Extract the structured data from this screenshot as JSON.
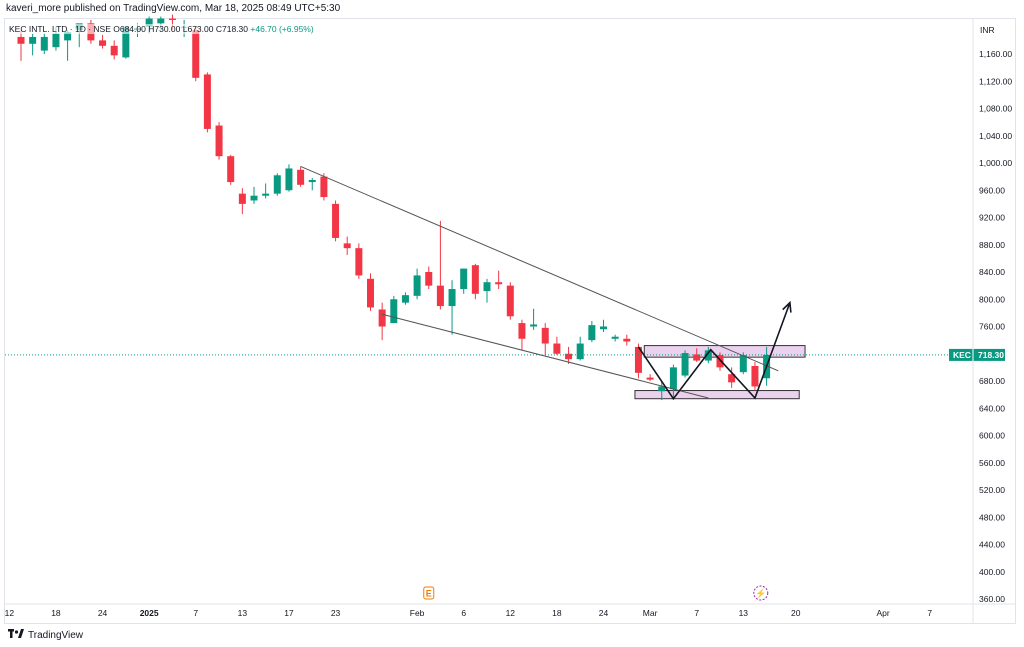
{
  "header": {
    "publisher": "kaveri_more published on TradingView.com, Mar 18, 2025 08:49 UTC+5:30"
  },
  "legend": {
    "symbol": "KEC INTL. LTD · 1D · NSE",
    "open": "O684.00",
    "high": "H730.00",
    "low": "L673.00",
    "close": "C718.30",
    "change": "+46.70 (+6.95%)"
  },
  "footer": {
    "brand": "TradingView",
    "logo": "tradingview-logo-icon"
  },
  "colors": {
    "up": "#089981",
    "down": "#f23645",
    "line": "#555555",
    "zone_fill": "#e1bee7",
    "zone_stroke": "#333333",
    "price_tag": "#089981"
  },
  "chart_data": {
    "type": "candlestick",
    "currency": "INR",
    "ylim": [
      345,
      1210
    ],
    "y_ticks": [
      1160,
      1120,
      1080,
      1040,
      1000,
      960,
      920,
      880,
      840,
      800,
      760,
      720,
      680,
      640,
      600,
      560,
      520,
      480,
      440,
      400,
      360
    ],
    "y_tick_labels": [
      "1,160.00",
      "1,120.00",
      "1,080.00",
      "1,040.00",
      "1,000.00",
      "960.00",
      "920.00",
      "880.00",
      "840.00",
      "800.00",
      "760.00",
      "720.00",
      "680.00",
      "640.00",
      "600.00",
      "560.00",
      "520.00",
      "480.00",
      "440.00",
      "400.00",
      "360.00"
    ],
    "x_ticks": [
      {
        "label": "12",
        "i": -1,
        "bold": false
      },
      {
        "label": "18",
        "i": 3,
        "bold": false
      },
      {
        "label": "24",
        "i": 7,
        "bold": false
      },
      {
        "label": "2025",
        "i": 11,
        "bold": true
      },
      {
        "label": "7",
        "i": 15,
        "bold": false
      },
      {
        "label": "13",
        "i": 19,
        "bold": false
      },
      {
        "label": "17",
        "i": 23,
        "bold": false
      },
      {
        "label": "23",
        "i": 27,
        "bold": false
      },
      {
        "label": "Feb",
        "i": 34,
        "bold": false
      },
      {
        "label": "6",
        "i": 38,
        "bold": false
      },
      {
        "label": "12",
        "i": 42,
        "bold": false
      },
      {
        "label": "18",
        "i": 46,
        "bold": false
      },
      {
        "label": "24",
        "i": 50,
        "bold": false
      },
      {
        "label": "Mar",
        "i": 54,
        "bold": false
      },
      {
        "label": "7",
        "i": 58,
        "bold": false
      },
      {
        "label": "13",
        "i": 62,
        "bold": false
      },
      {
        "label": "20",
        "i": 66.5,
        "bold": false
      },
      {
        "label": "Apr",
        "i": 74,
        "bold": false
      },
      {
        "label": "7",
        "i": 78,
        "bold": false
      }
    ],
    "candles": [
      {
        "o": 1185,
        "h": 1195,
        "l": 1150,
        "c": 1175
      },
      {
        "o": 1175,
        "h": 1190,
        "l": 1158,
        "c": 1185
      },
      {
        "o": 1165,
        "h": 1190,
        "l": 1160,
        "c": 1185
      },
      {
        "o": 1170,
        "h": 1200,
        "l": 1165,
        "c": 1190
      },
      {
        "o": 1180,
        "h": 1195,
        "l": 1150,
        "c": 1192
      },
      {
        "o": 1195,
        "h": 1200,
        "l": 1170,
        "c": 1205
      },
      {
        "o": 1205,
        "h": 1210,
        "l": 1175,
        "c": 1180
      },
      {
        "o": 1180,
        "h": 1188,
        "l": 1168,
        "c": 1172
      },
      {
        "o": 1172,
        "h": 1180,
        "l": 1152,
        "c": 1158
      },
      {
        "o": 1155,
        "h": 1200,
        "l": 1153,
        "c": 1200
      },
      {
        "o": 1195,
        "h": 1205,
        "l": 1185,
        "c": 1198
      },
      {
        "o": 1200,
        "h": 1215,
        "l": 1190,
        "c": 1212
      },
      {
        "o": 1205,
        "h": 1215,
        "l": 1196,
        "c": 1212
      },
      {
        "o": 1212,
        "h": 1218,
        "l": 1195,
        "c": 1210
      },
      {
        "o": 1200,
        "h": 1210,
        "l": 1185,
        "c": 1200
      },
      {
        "o": 1195,
        "h": 1200,
        "l": 1120,
        "c": 1125
      },
      {
        "o": 1130,
        "h": 1133,
        "l": 1045,
        "c": 1050
      },
      {
        "o": 1055,
        "h": 1060,
        "l": 1005,
        "c": 1010
      },
      {
        "o": 1010,
        "h": 1012,
        "l": 968,
        "c": 972
      },
      {
        "o": 955,
        "h": 963,
        "l": 925,
        "c": 940
      },
      {
        "o": 945,
        "h": 965,
        "l": 940,
        "c": 952
      },
      {
        "o": 952,
        "h": 970,
        "l": 948,
        "c": 955
      },
      {
        "o": 955,
        "h": 985,
        "l": 952,
        "c": 982
      },
      {
        "o": 960,
        "h": 998,
        "l": 958,
        "c": 992
      },
      {
        "o": 990,
        "h": 995,
        "l": 965,
        "c": 968
      },
      {
        "o": 972,
        "h": 978,
        "l": 960,
        "c": 975
      },
      {
        "o": 980,
        "h": 985,
        "l": 945,
        "c": 950
      },
      {
        "o": 940,
        "h": 945,
        "l": 885,
        "c": 890
      },
      {
        "o": 882,
        "h": 892,
        "l": 865,
        "c": 875
      },
      {
        "o": 875,
        "h": 882,
        "l": 830,
        "c": 835
      },
      {
        "o": 830,
        "h": 838,
        "l": 783,
        "c": 788
      },
      {
        "o": 785,
        "h": 795,
        "l": 740,
        "c": 760
      },
      {
        "o": 765,
        "h": 805,
        "l": 765,
        "c": 800
      },
      {
        "o": 795,
        "h": 810,
        "l": 792,
        "c": 806
      },
      {
        "o": 805,
        "h": 845,
        "l": 800,
        "c": 835
      },
      {
        "o": 840,
        "h": 848,
        "l": 815,
        "c": 820
      },
      {
        "o": 820,
        "h": 915,
        "l": 785,
        "c": 790
      },
      {
        "o": 790,
        "h": 828,
        "l": 748,
        "c": 815
      },
      {
        "o": 815,
        "h": 845,
        "l": 808,
        "c": 845
      },
      {
        "o": 850,
        "h": 852,
        "l": 800,
        "c": 808
      },
      {
        "o": 812,
        "h": 830,
        "l": 795,
        "c": 825
      },
      {
        "o": 825,
        "h": 842,
        "l": 815,
        "c": 822
      },
      {
        "o": 820,
        "h": 825,
        "l": 770,
        "c": 775
      },
      {
        "o": 765,
        "h": 770,
        "l": 725,
        "c": 742
      },
      {
        "o": 760,
        "h": 786,
        "l": 755,
        "c": 763
      },
      {
        "o": 758,
        "h": 765,
        "l": 718,
        "c": 735
      },
      {
        "o": 735,
        "h": 745,
        "l": 718,
        "c": 720
      },
      {
        "o": 720,
        "h": 730,
        "l": 705,
        "c": 712
      },
      {
        "o": 712,
        "h": 745,
        "l": 710,
        "c": 735
      },
      {
        "o": 740,
        "h": 768,
        "l": 737,
        "c": 762
      },
      {
        "o": 756,
        "h": 770,
        "l": 752,
        "c": 760
      },
      {
        "o": 742,
        "h": 748,
        "l": 738,
        "c": 745
      },
      {
        "o": 742,
        "h": 748,
        "l": 732,
        "c": 738
      },
      {
        "o": 730,
        "h": 735,
        "l": 684,
        "c": 692
      },
      {
        "o": 685,
        "h": 690,
        "l": 680,
        "c": 682
      },
      {
        "o": 665,
        "h": 680,
        "l": 652,
        "c": 672
      },
      {
        "o": 668,
        "h": 704,
        "l": 655,
        "c": 700
      },
      {
        "o": 688,
        "h": 725,
        "l": 685,
        "c": 721
      },
      {
        "o": 719,
        "h": 728,
        "l": 708,
        "c": 710
      },
      {
        "o": 710,
        "h": 730,
        "l": 706,
        "c": 725
      },
      {
        "o": 718,
        "h": 722,
        "l": 695,
        "c": 700
      },
      {
        "o": 690,
        "h": 700,
        "l": 670,
        "c": 678
      },
      {
        "o": 693,
        "h": 722,
        "l": 690,
        "c": 718
      },
      {
        "o": 702,
        "h": 708,
        "l": 666,
        "c": 672
      },
      {
        "o": 684,
        "h": 730,
        "l": 673,
        "c": 718.3
      }
    ],
    "price_tag": "718.30",
    "symbol_tag": "KEC",
    "last_price": 718.3,
    "channel_upper": [
      {
        "i": 24,
        "p": 995
      },
      {
        "i": 65,
        "p": 695
      }
    ],
    "channel_lower": [
      {
        "i": 31,
        "p": 778
      },
      {
        "i": 59,
        "p": 655
      }
    ],
    "pattern_path": [
      {
        "i": 53,
        "p": 730
      },
      {
        "i": 56,
        "p": 654
      },
      {
        "i": 59.2,
        "p": 726
      },
      {
        "i": 63,
        "p": 655
      },
      {
        "i": 66,
        "p": 795
      }
    ],
    "zones": [
      {
        "i1": 53.5,
        "i2": 67.3,
        "p1": 732,
        "p2": 715
      },
      {
        "i1": 52.7,
        "i2": 66.8,
        "p1": 666,
        "p2": 654
      }
    ],
    "events": [
      {
        "label": "E",
        "i": 35,
        "type": "earnings"
      },
      {
        "label": "⚡",
        "i": 63.5,
        "type": "split"
      }
    ]
  }
}
